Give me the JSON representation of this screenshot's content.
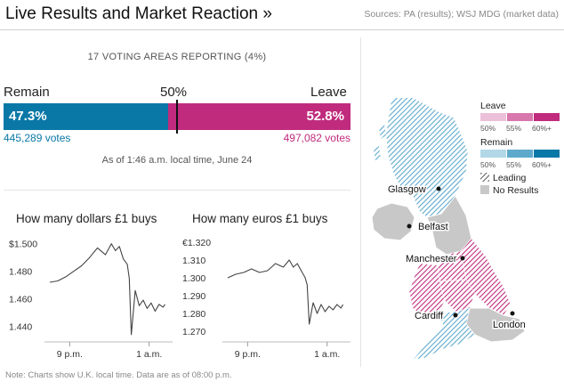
{
  "header": {
    "title": "Live Results and Market Reaction »",
    "sources": "Sources: PA (results); WSJ MDG (market data)"
  },
  "results": {
    "reporting": "17 VOTING AREAS REPORTING (4%)",
    "remain_label": "Remain",
    "leave_label": "Leave",
    "midpoint_label": "50%",
    "remain_pct": "47.3%",
    "leave_pct": "52.8%",
    "remain_share": 47.3,
    "leave_share": 52.8,
    "remain_votes": "445,289 votes",
    "leave_votes": "497,082 votes",
    "as_of": "As of 1:46 a.m. local time, June 24"
  },
  "colors": {
    "remain": "#0a78a7",
    "leave": "#c02b7d",
    "no_results": "#c8c8c8",
    "line": "#444444"
  },
  "map": {
    "legend": {
      "leave_title": "Leave",
      "remain_title": "Remain",
      "leave_ticks": [
        "50%",
        "55%",
        "60%+"
      ],
      "remain_ticks": [
        "50%",
        "55%",
        "60%+"
      ],
      "leading_label": "Leading",
      "no_results_label": "No Results",
      "leave_colors": [
        "#ecc0d8",
        "#d877ac",
        "#c02b7d"
      ],
      "remain_colors": [
        "#b2d8e8",
        "#5fa9cc",
        "#0a78a7"
      ]
    },
    "cities": [
      "Glasgow",
      "Belfast",
      "Manchester",
      "Cardiff",
      "London"
    ]
  },
  "chart_data": [
    {
      "type": "line",
      "title": "How many dollars £1 buys",
      "x_ticks": [
        "9 p.m.",
        "1 a.m."
      ],
      "y_ticks": [
        "$1.500",
        "1.480",
        "1.460",
        "1.440"
      ],
      "ylim": [
        1.43,
        1.505
      ],
      "y_tick_values": [
        1.5,
        1.48,
        1.46,
        1.44
      ],
      "x_hours": [
        20,
        20.4,
        20.8,
        21.2,
        21.6,
        22.0,
        22.4,
        22.8,
        23.1,
        23.3,
        23.5,
        23.7,
        23.9,
        24.0,
        24.1,
        24.3,
        24.5,
        24.7,
        24.9,
        25.1,
        25.3,
        25.5,
        25.7,
        25.8
      ],
      "values": [
        1.472,
        1.473,
        1.476,
        1.48,
        1.484,
        1.49,
        1.497,
        1.492,
        1.5,
        1.495,
        1.498,
        1.489,
        1.485,
        1.475,
        1.434,
        1.466,
        1.455,
        1.459,
        1.453,
        1.457,
        1.451,
        1.456,
        1.454,
        1.456
      ]
    },
    {
      "type": "line",
      "title": "How many euros £1 buys",
      "x_ticks": [
        "9 p.m.",
        "1 a.m."
      ],
      "y_ticks": [
        "€1.320",
        "1.310",
        "1.300",
        "1.290",
        "1.280",
        "1.270"
      ],
      "ylim": [
        1.265,
        1.323
      ],
      "y_tick_values": [
        1.32,
        1.31,
        1.3,
        1.29,
        1.28,
        1.27
      ],
      "x_hours": [
        20,
        20.4,
        20.8,
        21.2,
        21.6,
        22.0,
        22.4,
        22.8,
        23.1,
        23.3,
        23.5,
        23.7,
        23.9,
        24.0,
        24.1,
        24.3,
        24.5,
        24.7,
        24.9,
        25.1,
        25.3,
        25.5,
        25.7,
        25.8
      ],
      "values": [
        1.3,
        1.302,
        1.303,
        1.305,
        1.303,
        1.304,
        1.308,
        1.306,
        1.31,
        1.306,
        1.308,
        1.304,
        1.3,
        1.296,
        1.274,
        1.286,
        1.28,
        1.285,
        1.281,
        1.284,
        1.282,
        1.285,
        1.283,
        1.285
      ]
    }
  ],
  "footer": {
    "note": "Note: Charts show U.K. local time. Data are as of 08:00 p.m."
  }
}
